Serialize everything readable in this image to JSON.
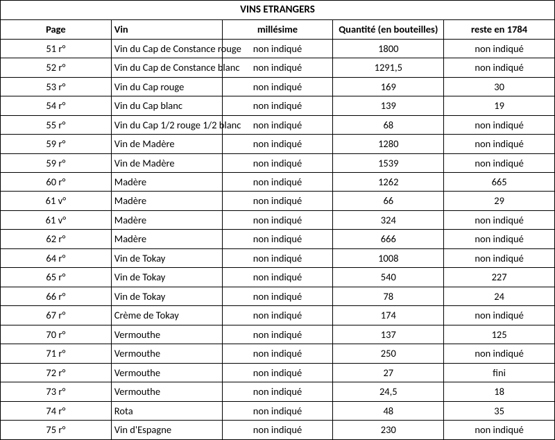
{
  "title": "VINS ETRANGERS",
  "columns": [
    "Page",
    "Vin",
    "millésime",
    "Quantité (en bouteilles)",
    "reste en 1784"
  ],
  "rows": [
    {
      "page": "51 r°",
      "vin": "Vin du Cap de Constance rouge",
      "mil": "non indiqué",
      "qty": "1800",
      "rest": "non indiqué"
    },
    {
      "page": "52 r°",
      "vin": "Vin du Cap de Constance blanc",
      "mil": "non indiqué",
      "qty": "1291,5",
      "rest": "non indiqué"
    },
    {
      "page": "53 r°",
      "vin": "Vin du Cap rouge",
      "mil": "non indiqué",
      "qty": "169",
      "rest": "30"
    },
    {
      "page": "54 r°",
      "vin": "Vin du Cap blanc",
      "mil": "non indiqué",
      "qty": "139",
      "rest": "19"
    },
    {
      "page": "55 r°",
      "vin": "Vin du Cap 1/2 rouge 1/2 blanc",
      "mil": "non indiqué",
      "qty": "68",
      "rest": "non indiqué"
    },
    {
      "page": "59 r°",
      "vin": "Vin de Madère",
      "mil": "non indiqué",
      "qty": "1280",
      "rest": "non indiqué"
    },
    {
      "page": "59 r°",
      "vin": "Vin de Madère",
      "mil": "non indiqué",
      "qty": "1539",
      "rest": "non indiqué"
    },
    {
      "page": "60 r°",
      "vin": "Madère",
      "mil": "non indiqué",
      "qty": "1262",
      "rest": "665"
    },
    {
      "page": "61 v°",
      "vin": "Madère",
      "mil": "non indiqué",
      "qty": "66",
      "rest": "29"
    },
    {
      "page": "61 v°",
      "vin": "Madère",
      "mil": "non indiqué",
      "qty": "324",
      "rest": "non indiqué"
    },
    {
      "page": "62 r°",
      "vin": "Madère",
      "mil": "non indiqué",
      "qty": "666",
      "rest": "non indiqué"
    },
    {
      "page": "64 r°",
      "vin": "Vin de Tokay",
      "mil": "non indiqué",
      "qty": "1008",
      "rest": "non indiqué"
    },
    {
      "page": "65 r°",
      "vin": "Vin de Tokay",
      "mil": "non indiqué",
      "qty": "540",
      "rest": "227"
    },
    {
      "page": "66 r°",
      "vin": "Vin de Tokay",
      "mil": "non indiqué",
      "qty": "78",
      "rest": "24"
    },
    {
      "page": "67 r°",
      "vin": "Crème de Tokay",
      "mil": "non indiqué",
      "qty": "174",
      "rest": "non indiqué"
    },
    {
      "page": "70 r°",
      "vin": "Vermouthe",
      "mil": "non indiqué",
      "qty": "137",
      "rest": "125"
    },
    {
      "page": "71 r°",
      "vin": "Vermouthe",
      "mil": "non indiqué",
      "qty": "250",
      "rest": "non indiqué"
    },
    {
      "page": "72 r°",
      "vin": "Vermouthe",
      "mil": "non indiqué",
      "qty": "27",
      "rest": "fini"
    },
    {
      "page": "73 r°",
      "vin": "Vermouthe",
      "mil": "non indiqué",
      "qty": "24,5",
      "rest": "18"
    },
    {
      "page": "74 r°",
      "vin": "Rota",
      "mil": "non indiqué",
      "qty": "48",
      "rest": "35"
    },
    {
      "page": "75 r°",
      "vin": "Vin d'Espagne",
      "mil": "non indiqué",
      "qty": "230",
      "rest": "non indiqué"
    }
  ]
}
